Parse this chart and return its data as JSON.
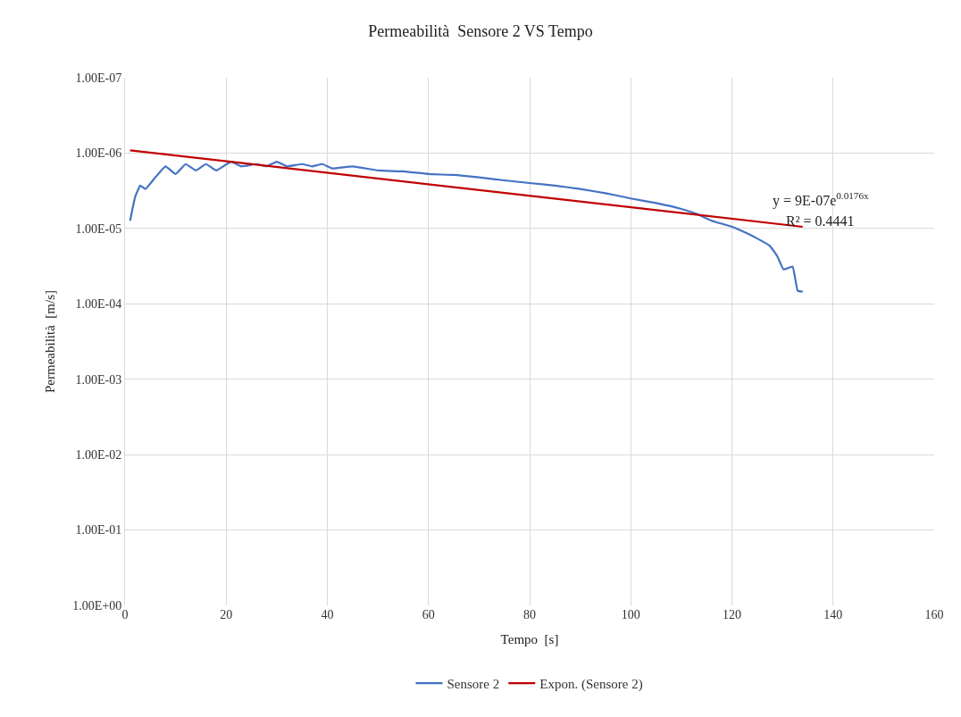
{
  "chart_data": {
    "type": "line",
    "title": "Permeabilità  Sensore 2 VS Tempo",
    "xlabel": "Tempo  [s]",
    "ylabel": "Permeabilità  [m/s]",
    "log": "y",
    "grid": true,
    "legend": "bottom",
    "marker": "none",
    "line_style": "solid",
    "xlim": [
      0,
      160
    ],
    "xticks": [
      0,
      20,
      40,
      60,
      80,
      100,
      120,
      140,
      160
    ],
    "ylim": [
      1,
      1e-07
    ],
    "yticks": [
      {
        "value": 1e-07,
        "label": "1.00E-07"
      },
      {
        "value": 1e-06,
        "label": "1.00E-06"
      },
      {
        "value": 1e-05,
        "label": "1.00E-05"
      },
      {
        "value": 0.0001,
        "label": "1.00E-04"
      },
      {
        "value": 0.001,
        "label": "1.00E-03"
      },
      {
        "value": 0.01,
        "label": "1.00E-02"
      },
      {
        "value": 0.1,
        "label": "1.00E-01"
      },
      {
        "value": 1,
        "label": "1.00E+00"
      }
    ],
    "series": [
      {
        "name": "Sensore 2",
        "color": "#4472c4",
        "x": [
          1,
          2,
          3,
          4,
          6,
          8,
          10,
          12,
          14,
          16,
          18,
          21,
          23,
          26,
          28,
          30,
          32,
          35,
          37,
          39,
          41,
          45,
          50,
          55,
          60,
          65,
          70,
          75,
          80,
          85,
          90,
          95,
          100,
          105,
          110,
          113,
          116,
          120,
          122.6,
          125,
          127.5,
          129,
          130.2,
          132,
          133,
          134
        ],
        "values": [
          7.9e-06,
          3.8e-06,
          2.7e-06,
          3e-06,
          2.1e-06,
          1.5e-06,
          1.9e-06,
          1.4e-06,
          1.7e-06,
          1.4e-06,
          1.7e-06,
          1.3e-06,
          1.5e-06,
          1.4e-06,
          1.5e-06,
          1.3e-06,
          1.5e-06,
          1.4e-06,
          1.5e-06,
          1.4e-06,
          1.6e-06,
          1.5e-06,
          1.7e-06,
          1.75e-06,
          1.9e-06,
          1.95e-06,
          2.1e-06,
          2.3e-06,
          2.5e-06,
          2.7e-06,
          3e-06,
          3.4e-06,
          4e-06,
          4.6e-06,
          5.5e-06,
          6.4e-06,
          7.9e-06,
          9.5e-06,
          1.13e-05,
          1.36e-05,
          1.7e-05,
          2.35e-05,
          3.5e-05,
          3.2e-05,
          6.7e-05,
          6.9e-05
        ]
      },
      {
        "name": "Expon. (Sensore 2)",
        "color": "#c00000",
        "x": [
          1,
          134
        ],
        "values": [
          9.2e-07,
          9.5e-06
        ]
      }
    ],
    "annotations": [
      {
        "text": "y = 9E-07e$^{0.0176x}$",
        "x": 134,
        "y": 9.5e-06
      },
      "R² = 0.4441"
    ]
  }
}
